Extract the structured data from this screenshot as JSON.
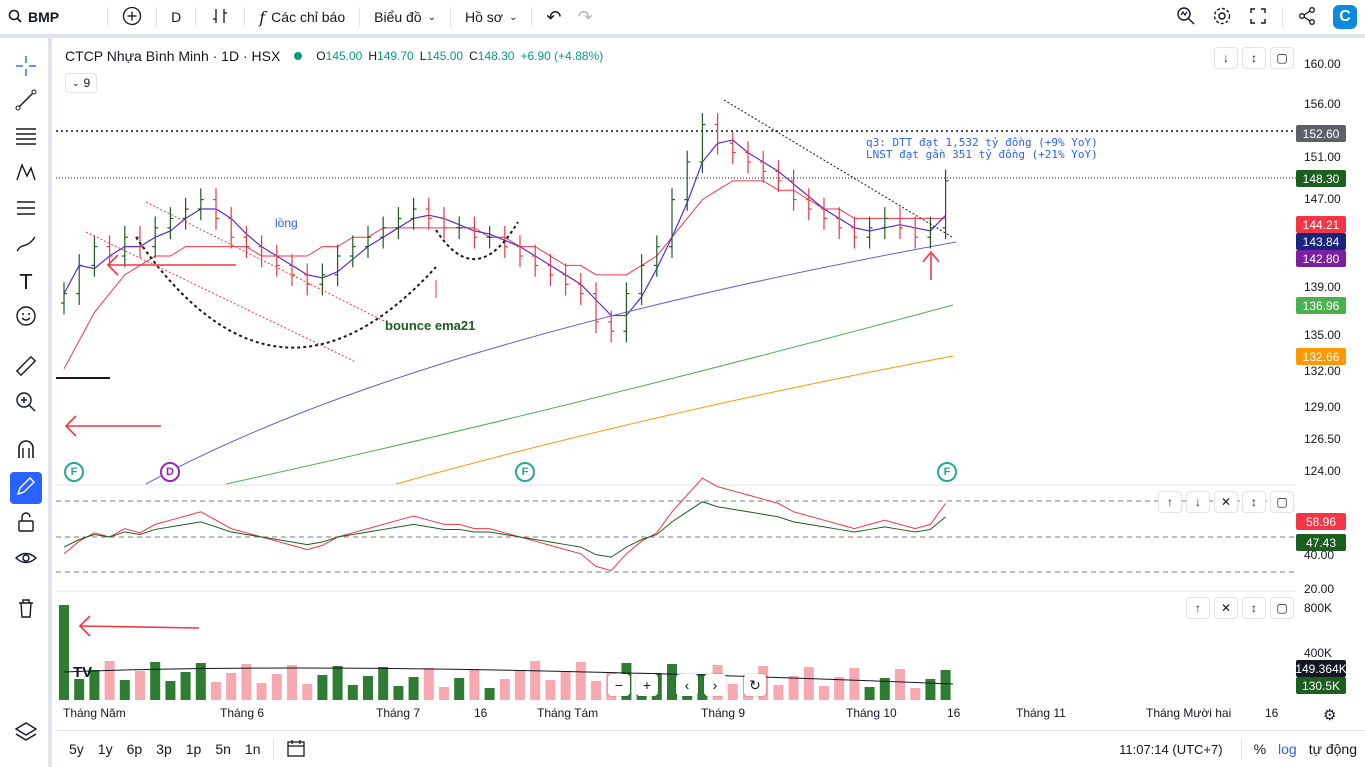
{
  "toolbar": {
    "symbol": "BMP",
    "interval": "D",
    "indicators_label": "Các chỉ báo",
    "chart_type_label": "Biểu đồ",
    "profile_label": "Hồ sơ"
  },
  "legend": {
    "title": "CTCP Nhựa Bình Minh · 1D · HSX",
    "open_label": "O",
    "open": "145.00",
    "high_label": "H",
    "high": "149.70",
    "low_label": "L",
    "low": "145.00",
    "close_label": "C",
    "close": "148.30",
    "change": "+6.90 (+4.88%)",
    "hidden_count": "9"
  },
  "annotations": {
    "note_line1": "q3: DTT đạt 1,532 tỷ đồng (+9% YoY)",
    "note_line2": "LNST đạt gần 351 tỷ đồng (+21% YoY)",
    "long_label": "lồng",
    "bounce_label": "bounce ema21"
  },
  "price_scale": {
    "ticks": [
      "160.00",
      "156.00",
      "151.00",
      "147.00",
      "139.00",
      "135.00",
      "132.00",
      "129.00",
      "126.50",
      "124.00"
    ],
    "badges": [
      {
        "value": "152.60",
        "color": "#5d606b"
      },
      {
        "value": "148.30",
        "color": "#1b5e20"
      },
      {
        "value": "144.21",
        "color": "#f23645"
      },
      {
        "value": "143.84",
        "color": "#1a237e"
      },
      {
        "value": "142.80",
        "color": "#7b1fa2"
      },
      {
        "value": "136.96",
        "color": "#4caf50"
      },
      {
        "value": "132.66",
        "color": "#ff9800"
      }
    ]
  },
  "rsi_scale": {
    "ticks": [
      "40.00",
      "20.00"
    ],
    "badges": [
      {
        "value": "58.96",
        "color": "#f23645"
      },
      {
        "value": "47.43",
        "color": "#1b5e20"
      }
    ]
  },
  "volume_scale": {
    "ticks": [
      "800K",
      "400K"
    ],
    "badges": [
      {
        "value": "149.364K",
        "color": "#131722"
      },
      {
        "value": "130.5K",
        "color": "#1b5e20"
      }
    ]
  },
  "events": {
    "f": "F",
    "d": "D"
  },
  "x_axis": [
    "Tháng Năm",
    "Tháng 6",
    "Tháng 7",
    "16",
    "Tháng Tám",
    "Tháng 9",
    "Tháng 10",
    "16",
    "Tháng 11",
    "Tháng Mười hai",
    "16"
  ],
  "ranges": [
    "5y",
    "1y",
    "6p",
    "3p",
    "1p",
    "5n",
    "1n"
  ],
  "footer": {
    "time": "11:07:14 (UTC+7)",
    "percent": "%",
    "log": "log",
    "auto": "tự động"
  },
  "chart_data": {
    "type": "candlestick",
    "close_series": [
      136,
      139,
      141,
      140,
      142,
      141,
      143,
      144,
      145,
      146,
      144,
      142,
      141,
      140,
      139,
      138,
      137,
      138,
      140,
      141,
      142,
      143,
      144,
      145,
      144,
      143,
      143,
      142,
      142,
      141,
      140,
      139,
      138,
      137,
      136,
      133,
      132,
      136,
      139,
      141,
      146,
      150,
      154,
      152,
      151,
      150,
      149,
      148,
      146,
      145,
      144,
      143,
      142,
      143,
      144,
      143,
      142,
      143,
      148
    ],
    "ema_red": [
      128,
      131,
      134,
      136,
      138,
      139,
      140,
      140,
      141,
      141,
      141,
      141,
      141,
      140,
      140,
      140,
      140,
      141,
      141,
      142,
      142,
      143,
      143,
      143,
      143,
      143,
      143,
      143,
      142,
      142,
      141,
      141,
      140,
      139,
      139,
      138,
      138,
      138,
      139,
      140,
      142,
      144,
      146,
      147,
      148,
      148,
      148,
      147,
      147,
      146,
      145,
      145,
      144,
      144,
      144,
      144,
      144,
      144,
      144
    ]
  }
}
